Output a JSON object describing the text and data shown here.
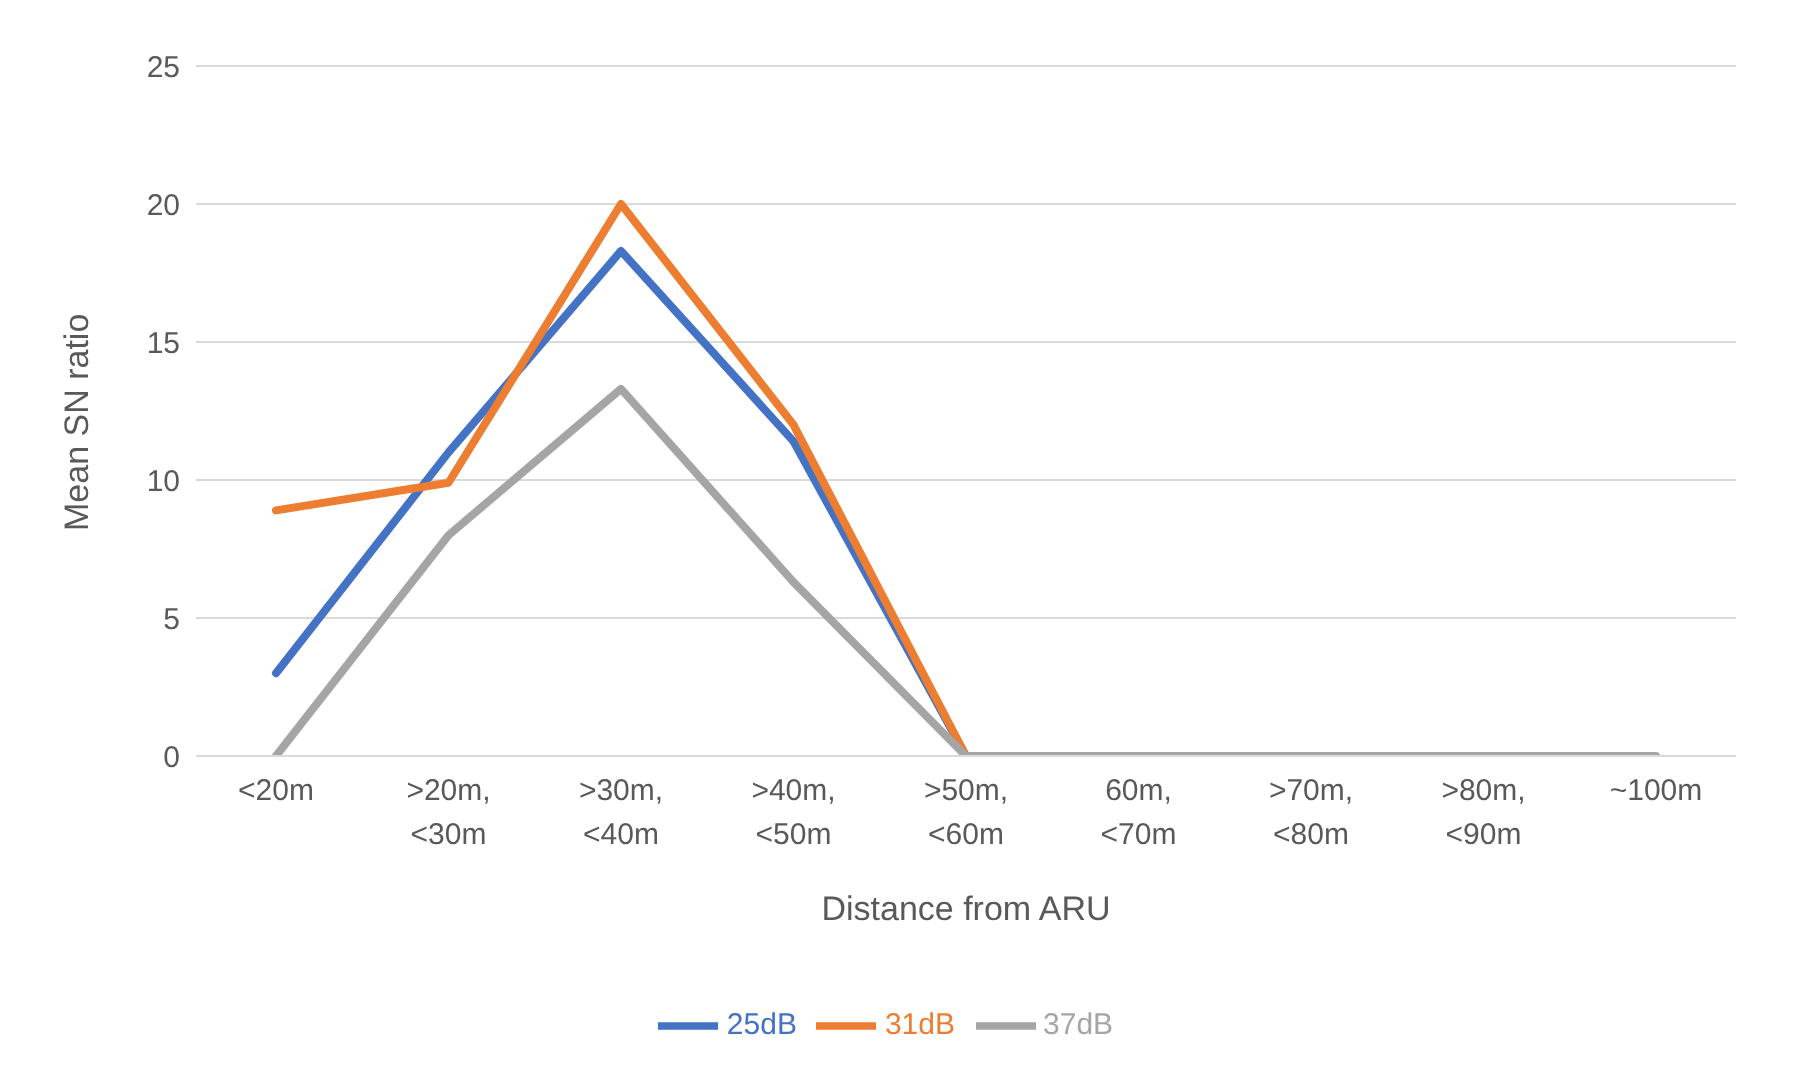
{
  "chart_data": {
    "type": "line",
    "xlabel": "Distance from ARU",
    "ylabel": "Mean SN ratio",
    "categories": [
      "<20m",
      ">20m, <30m",
      ">30m, <40m",
      ">40m, <50m",
      ">50m, <60m",
      "60m, <70m",
      ">70m, <80m",
      ">80m, <90m",
      "~100m"
    ],
    "series": [
      {
        "name": "25dB",
        "color": "#4472c4",
        "values": [
          3,
          11,
          18.3,
          11.4,
          0,
          null,
          null,
          null,
          null
        ]
      },
      {
        "name": "31dB",
        "color": "#ed7d31",
        "values": [
          8.9,
          9.9,
          20,
          12,
          0,
          null,
          null,
          null,
          null
        ]
      },
      {
        "name": "37dB",
        "color": "#a5a5a5",
        "values": [
          0,
          8,
          13.3,
          6.3,
          0,
          0,
          0,
          0,
          0
        ]
      }
    ],
    "ylim": [
      0,
      25
    ],
    "yticks": [
      0,
      5,
      10,
      15,
      20,
      25
    ],
    "grid": "y",
    "legend": "bottom",
    "marker": "none",
    "line_style": "solid"
  }
}
